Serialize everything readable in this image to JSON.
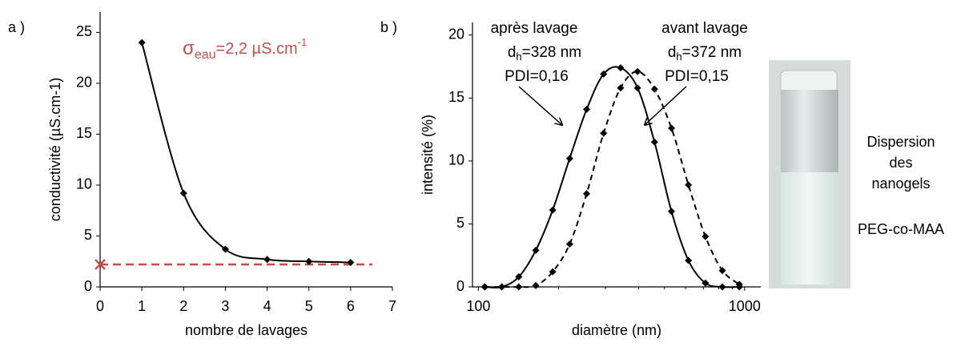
{
  "chart_data": [
    {
      "type": "line",
      "panel": "a )",
      "xlabel": "nombre de lavages",
      "ylabel": "conductivité (µS.cm-1)",
      "x": [
        1,
        2,
        3,
        4,
        5,
        6
      ],
      "series": [
        {
          "color": "#000000",
          "dash": false,
          "values": [
            24,
            9.2,
            3.7,
            2.7,
            2.5,
            2.4
          ]
        }
      ],
      "curve": "smooth",
      "marker": "diamond",
      "xlim": [
        0,
        7
      ],
      "xticks": [
        0,
        1,
        2,
        3,
        4,
        5,
        6,
        7
      ],
      "ylim": [
        0,
        27
      ],
      "yticks": [
        0,
        5,
        10,
        15,
        20,
        25
      ],
      "reference": {
        "value": 2.2,
        "color": "#c0504d",
        "label": [
          "σ",
          "eau",
          "=2,2 µS.cm",
          "-1"
        ]
      }
    },
    {
      "type": "line",
      "panel": "b )",
      "xlabel": "diamètre (nm)",
      "ylabel": "intensité (%)",
      "x": [
        105.7,
        122.4,
        141.8,
        164.2,
        190.1,
        220.2,
        255.0,
        295.3,
        342.0,
        396.1,
        458.7,
        531.2,
        615.1,
        712.4,
        825.0,
        955.4
      ],
      "series": [
        {
          "color": "#000000",
          "dash": false,
          "values": [
            0,
            0,
            0.8,
            2.9,
            6.1,
            10.2,
            14.1,
            16.9,
            17.4,
            15.8,
            11.5,
            6.0,
            2.1,
            0.3,
            0,
            0
          ]
        },
        {
          "color": "#000000",
          "dash": true,
          "values": [
            0,
            0,
            0,
            0.1,
            1.2,
            3.4,
            7.4,
            12.2,
            15.8,
            17.1,
            15.7,
            12.6,
            8.1,
            4.0,
            1.3,
            0.2
          ]
        }
      ],
      "curve": "smooth",
      "marker": "diamond",
      "xscale": "log",
      "xlim": [
        95,
        1150
      ],
      "xticks": [
        100,
        1000
      ],
      "ylim": [
        0,
        21
      ],
      "yticks": [
        0,
        5,
        10,
        15,
        20
      ],
      "annotations": [
        {
          "title": "après lavage",
          "d": "d",
          "sub": "h",
          "size": "=328 nm",
          "pdi": "PDI=0,16"
        },
        {
          "title": "avant lavage",
          "d": "d",
          "sub": "h",
          "size": "=372 nm",
          "pdi": "PDI=0,15"
        }
      ]
    }
  ],
  "photo_caption": [
    "Dispersion",
    "des",
    "nanogels",
    "PEG-co-MAA"
  ]
}
